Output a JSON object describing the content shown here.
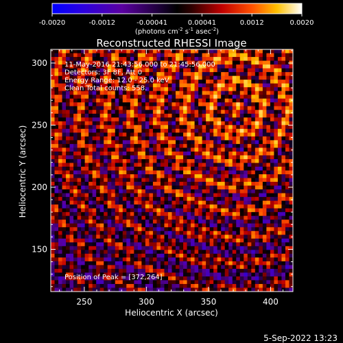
{
  "chart_data": {
    "type": "heatmap",
    "title": "Reconstructed RHESSI Image",
    "xlabel": "Heliocentric X (arcsec)",
    "ylabel": "Heliocentric Y (arcsec)",
    "xlim": [
      223,
      418
    ],
    "ylim": [
      116,
      311
    ],
    "x_ticks": [
      250,
      300,
      350,
      400
    ],
    "y_ticks": [
      150,
      200,
      250,
      300
    ],
    "colorbar": {
      "ticks": [
        "-0.0020",
        "-0.0012",
        "-0.00041",
        "0.00041",
        "0.0012",
        "0.0020"
      ],
      "range": [
        -0.002,
        0.002
      ],
      "units_label": "(photons cm-2 s-1 asec-2)",
      "colormap": "rainbow-blue-black-red-yellow-white"
    },
    "annotations": [
      "11-May-2016 21:43:56.000 to 21:45:56.000",
      "Detectors: 3F 8F, Att 0",
      "Energy Range: 12.0 - 25.0 keV",
      "Clean    Total counts: 558."
    ],
    "peak_label": "Position of Peak = [372,264]",
    "peak_position": [
      372,
      264
    ],
    "grid": false
  },
  "footer": {
    "timestamp": "5-Sep-2022 13:23"
  },
  "colors": {
    "background": "#000000",
    "foreground": "#ffffff"
  }
}
